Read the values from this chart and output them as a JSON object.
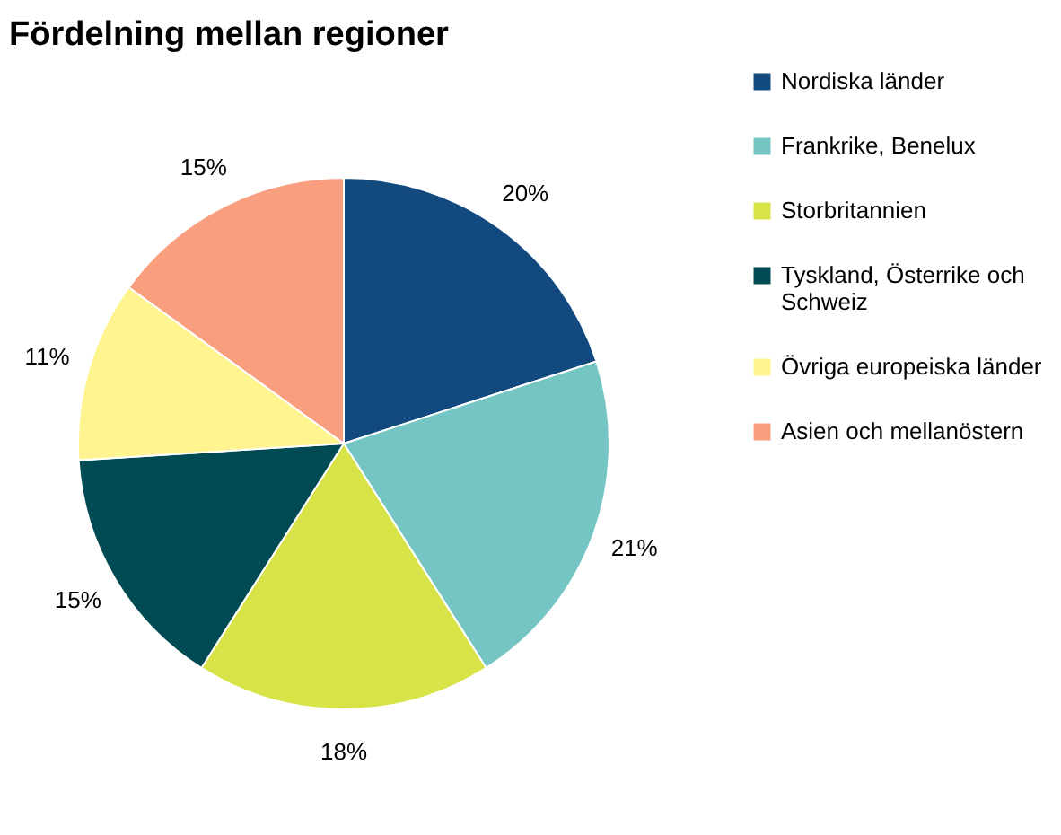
{
  "chart_data": {
    "type": "pie",
    "title": "Fördelning mellan regioner",
    "categories": [
      "Nordiska länder",
      "Frankrike, Benelux",
      "Storbritannien",
      "Tyskland, Österrike och Schweiz",
      "Övriga europeiska länder",
      "Asien och mellanöstern"
    ],
    "values": [
      20,
      21,
      18,
      15,
      11,
      15
    ],
    "colors": [
      "#124a80",
      "#74c5c3",
      "#d7e346",
      "#004a54",
      "#fff48f",
      "#fa9e80"
    ],
    "value_labels": [
      "20%",
      "21%",
      "18%",
      "15%",
      "11%",
      "15%"
    ],
    "legend": "right"
  }
}
